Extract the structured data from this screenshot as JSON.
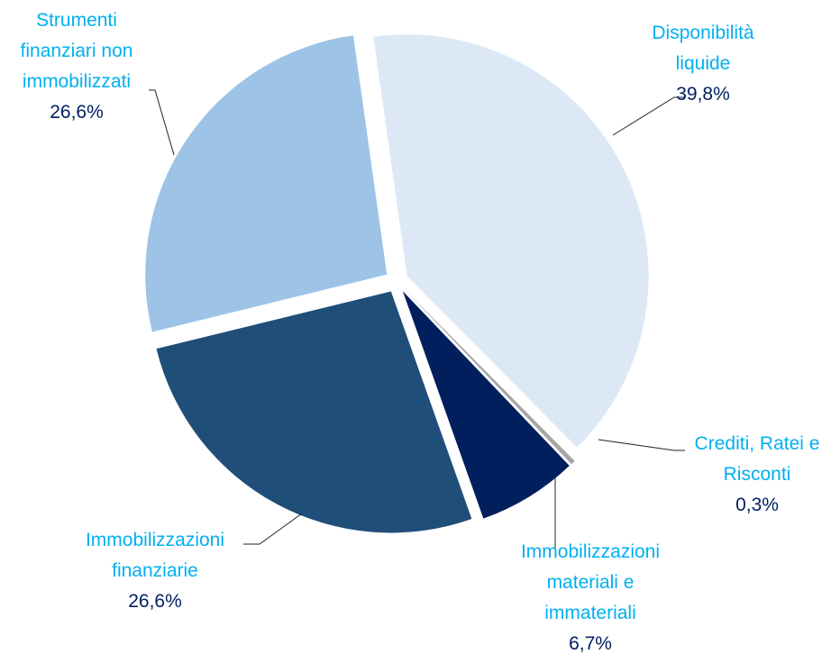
{
  "chart_data": {
    "type": "pie",
    "categories": [
      "Disponibilità liquide",
      "Crediti, Ratei e Risconti",
      "Immobilizzazioni materiali e immateriali",
      "Immobilizzazioni finanziarie",
      "Strumenti finanziari non immobilizzati"
    ],
    "values": [
      39.8,
      0.3,
      6.7,
      26.6,
      26.6
    ],
    "value_labels": [
      "39,8%",
      "0,3%",
      "6,7%",
      "26,6%",
      "26,6%"
    ],
    "colors": [
      "#dce8f5",
      "#a6a6a6",
      "#001f5c",
      "#1f4e79",
      "#9dc3e6"
    ]
  }
}
